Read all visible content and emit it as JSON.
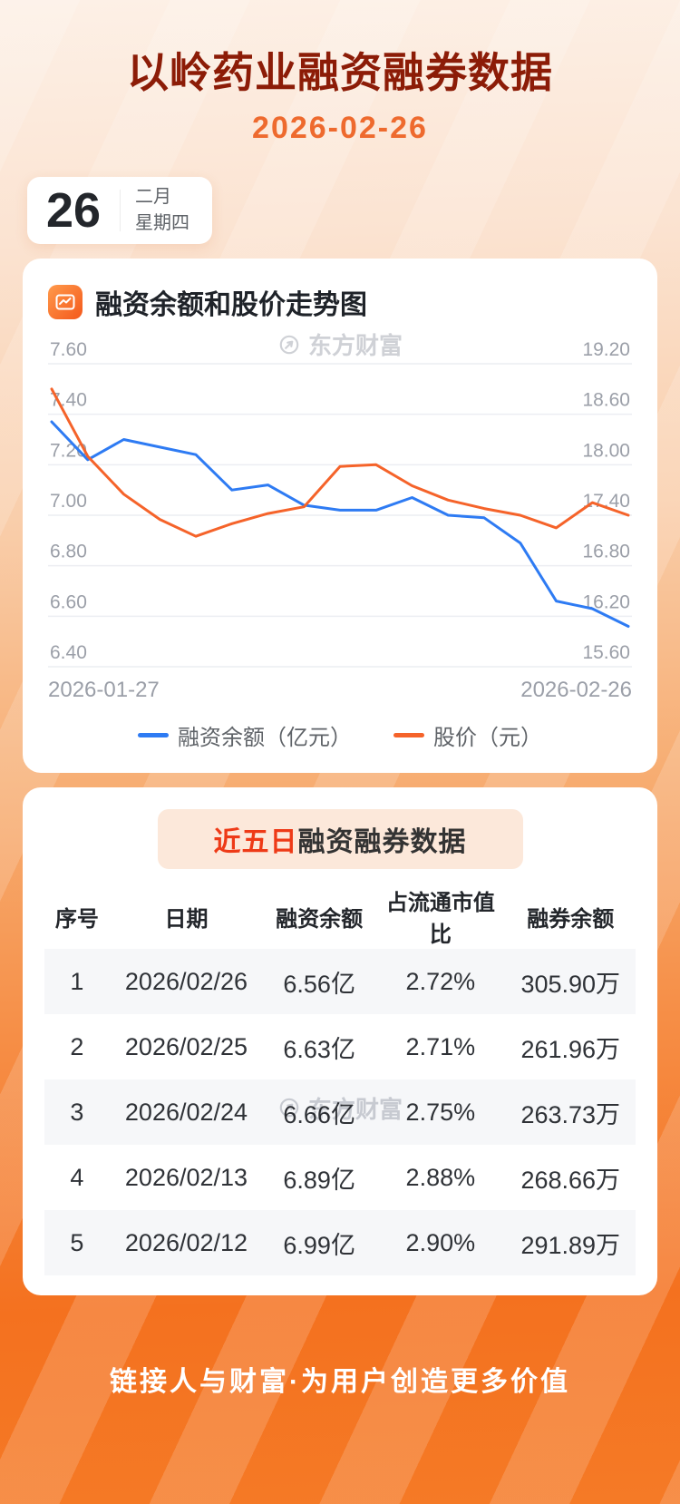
{
  "header": {
    "title": "以岭药业融资融券数据",
    "date": "2026-02-26"
  },
  "calendar": {
    "day": "26",
    "month": "二月",
    "weekday": "星期四"
  },
  "chart_section": {
    "title": "融资余额和股价走势图",
    "watermark": "东方财富"
  },
  "chart_data": {
    "type": "line",
    "title": "融资余额和股价走势图",
    "x": [
      1,
      2,
      3,
      4,
      5,
      6,
      7,
      8,
      9,
      10,
      11,
      12,
      13,
      14,
      15,
      16,
      17
    ],
    "x_labels": {
      "start": "2026-01-27",
      "end": "2026-02-26"
    },
    "left_axis": {
      "min": 6.4,
      "max": 7.6,
      "ticks": [
        "7.60",
        "7.40",
        "7.20",
        "7.00",
        "6.80",
        "6.60",
        "6.40"
      ]
    },
    "right_axis": {
      "min": 15.6,
      "max": 19.2,
      "ticks": [
        "19.20",
        "18.60",
        "18.00",
        "17.40",
        "16.80",
        "16.20",
        "15.60"
      ]
    },
    "series": [
      {
        "name": "融资余额（亿元）",
        "axis": "left",
        "color": "#2e7bf3",
        "values": [
          7.37,
          7.22,
          7.3,
          7.27,
          7.24,
          7.1,
          7.12,
          7.04,
          7.02,
          7.02,
          7.07,
          7.0,
          6.99,
          6.89,
          6.66,
          6.63,
          6.56
        ]
      },
      {
        "name": "股价（元）",
        "axis": "right",
        "color": "#f5632a",
        "values": [
          18.9,
          18.1,
          17.65,
          17.35,
          17.15,
          17.3,
          17.42,
          17.5,
          17.98,
          18.0,
          17.75,
          17.58,
          17.48,
          17.4,
          17.25,
          17.55,
          17.4
        ]
      }
    ],
    "grid": true,
    "legend_position": "bottom"
  },
  "table_section": {
    "badge_highlight": "近五日",
    "badge_rest": "融资融券数据",
    "watermark": "东方财富",
    "columns": [
      "序号",
      "日期",
      "融资余额",
      "占流通市值比",
      "融券余额"
    ],
    "rows": [
      [
        "1",
        "2026/02/26",
        "6.56亿",
        "2.72%",
        "305.90万"
      ],
      [
        "2",
        "2026/02/25",
        "6.63亿",
        "2.71%",
        "261.96万"
      ],
      [
        "3",
        "2026/02/24",
        "6.66亿",
        "2.75%",
        "263.73万"
      ],
      [
        "4",
        "2026/02/13",
        "6.89亿",
        "2.88%",
        "268.66万"
      ],
      [
        "5",
        "2026/02/12",
        "6.99亿",
        "2.90%",
        "291.89万"
      ]
    ]
  },
  "footer": {
    "slogan": "链接人与财富·为用户创造更多价值"
  },
  "colors": {
    "title_red": "#8c1c07",
    "date_orange": "#ee6a2e",
    "highlight_red": "#ee3a17",
    "line_blue": "#2e7bf3",
    "line_orange": "#f5632a",
    "footer_bg_orange": "#f4711f"
  }
}
